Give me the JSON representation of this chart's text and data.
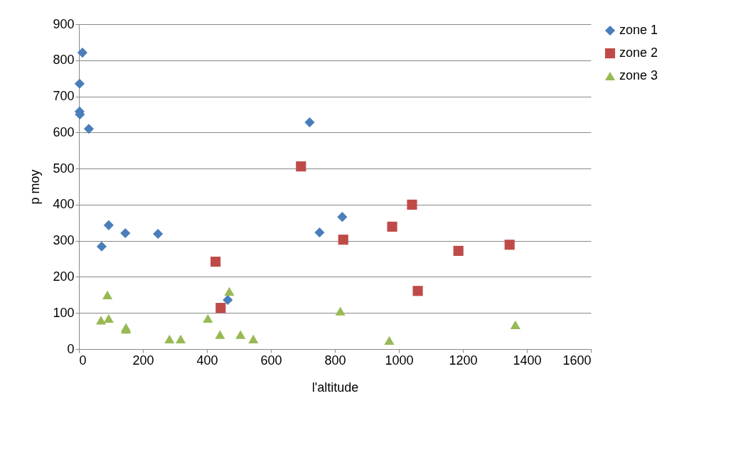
{
  "chart_data": {
    "type": "scatter",
    "xlabel": "l'altitude",
    "ylabel": "p moy",
    "xlim": [
      0,
      1600
    ],
    "xticks": [
      0,
      200,
      400,
      600,
      800,
      1000,
      1200,
      1400,
      1600
    ],
    "ylim": [
      0,
      900
    ],
    "yticks": [
      0,
      100,
      200,
      300,
      400,
      500,
      600,
      700,
      800,
      900
    ],
    "grid": "y",
    "legend": "right",
    "series": [
      {
        "name": "zone 1",
        "color": "#4a7ebb",
        "marker": "diamond",
        "x": [
          11,
          2,
          2,
          3,
          31,
          93,
          71,
          145,
          247,
          721,
          752,
          823,
          465
        ],
        "values": [
          821,
          735,
          658,
          650,
          610,
          343,
          284,
          321,
          319,
          628,
          323,
          366,
          136
        ]
      },
      {
        "name": "zone 2",
        "color": "#be4b48",
        "marker": "square",
        "x": [
          694,
          427,
          443,
          826,
          979,
          1041,
          1186,
          1059,
          1346
        ],
        "values": [
          506,
          242,
          114,
          303,
          339,
          400,
          272,
          161,
          289
        ]
      },
      {
        "name": "zone 3",
        "color": "#98b954",
        "marker": "triangle",
        "x": [
          89,
          69,
          93,
          147,
          147,
          283,
          318,
          403,
          470,
          441,
          505,
          545,
          817,
          970,
          1364
        ],
        "values": [
          150,
          80,
          85,
          60,
          55,
          28,
          28,
          85,
          160,
          40,
          40,
          28,
          105,
          24,
          67
        ]
      }
    ]
  }
}
